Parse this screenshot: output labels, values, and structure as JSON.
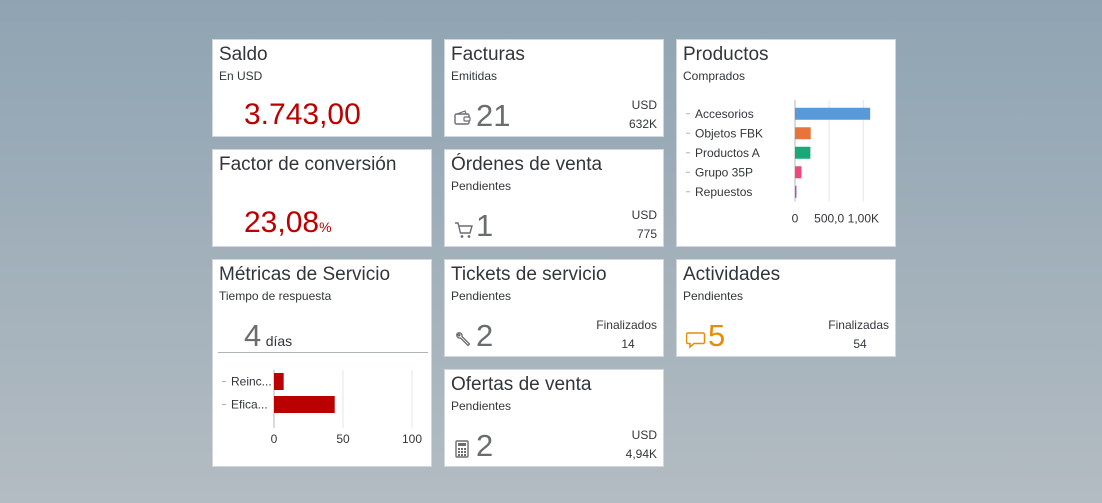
{
  "tiles": {
    "saldo": {
      "title": "Saldo",
      "subtitle": "En USD",
      "value": "3.743,00",
      "value_color": "#bb0000"
    },
    "factor": {
      "title": "Factor de conversión",
      "value": "23,08",
      "unit": "%",
      "value_color": "#bb0000"
    },
    "metricas": {
      "title": "Métricas de Servicio",
      "subtitle": "Tiempo de respuesta",
      "value": "4",
      "unit": "días",
      "chart_data": {
        "type": "bar",
        "categories": [
          "Reinc...",
          "Efica..."
        ],
        "values": [
          7,
          44
        ],
        "xlim": [
          0,
          100
        ],
        "xticks": [
          "0",
          "50",
          "100"
        ],
        "bar_color": "#bb0000"
      }
    },
    "facturas": {
      "title": "Facturas",
      "subtitle": "Emitidas",
      "value": "21",
      "side_unit": "USD",
      "side_value": "632K",
      "icon": "wallet-icon"
    },
    "ordenes": {
      "title": "Órdenes de venta",
      "subtitle": "Pendientes",
      "value": "1",
      "side_unit": "USD",
      "side_value": "775",
      "icon": "cart-icon"
    },
    "tickets": {
      "title": "Tickets de servicio",
      "subtitle": "Pendientes",
      "value": "2",
      "side_label": "Finalizados",
      "side_value": "14",
      "icon": "wrench-icon"
    },
    "ofertas": {
      "title": "Ofertas de venta",
      "subtitle": "Pendientes",
      "value": "2",
      "side_unit": "USD",
      "side_value": "4,94K",
      "icon": "calculator-icon"
    },
    "productos": {
      "title": "Productos",
      "subtitle": "Comprados",
      "chart_data": {
        "type": "bar",
        "categories": [
          "Accesorios",
          "Objetos FBK",
          "Productos A",
          "Grupo 35P",
          "Repuestos"
        ],
        "values": [
          1100,
          230,
          225,
          95,
          5
        ],
        "colors": [
          "#5899da",
          "#e8743b",
          "#19a979",
          "#ed4a7b",
          "#945ecf"
        ],
        "xlim": [
          0,
          1200
        ],
        "xticks": [
          "0",
          "500,0",
          "1,00K"
        ]
      }
    },
    "actividades": {
      "title": "Actividades",
      "subtitle": "Pendientes",
      "value": "5",
      "value_color": "#e78c07",
      "side_label": "Finalizadas",
      "side_value": "54",
      "icon": "chat-icon"
    }
  }
}
